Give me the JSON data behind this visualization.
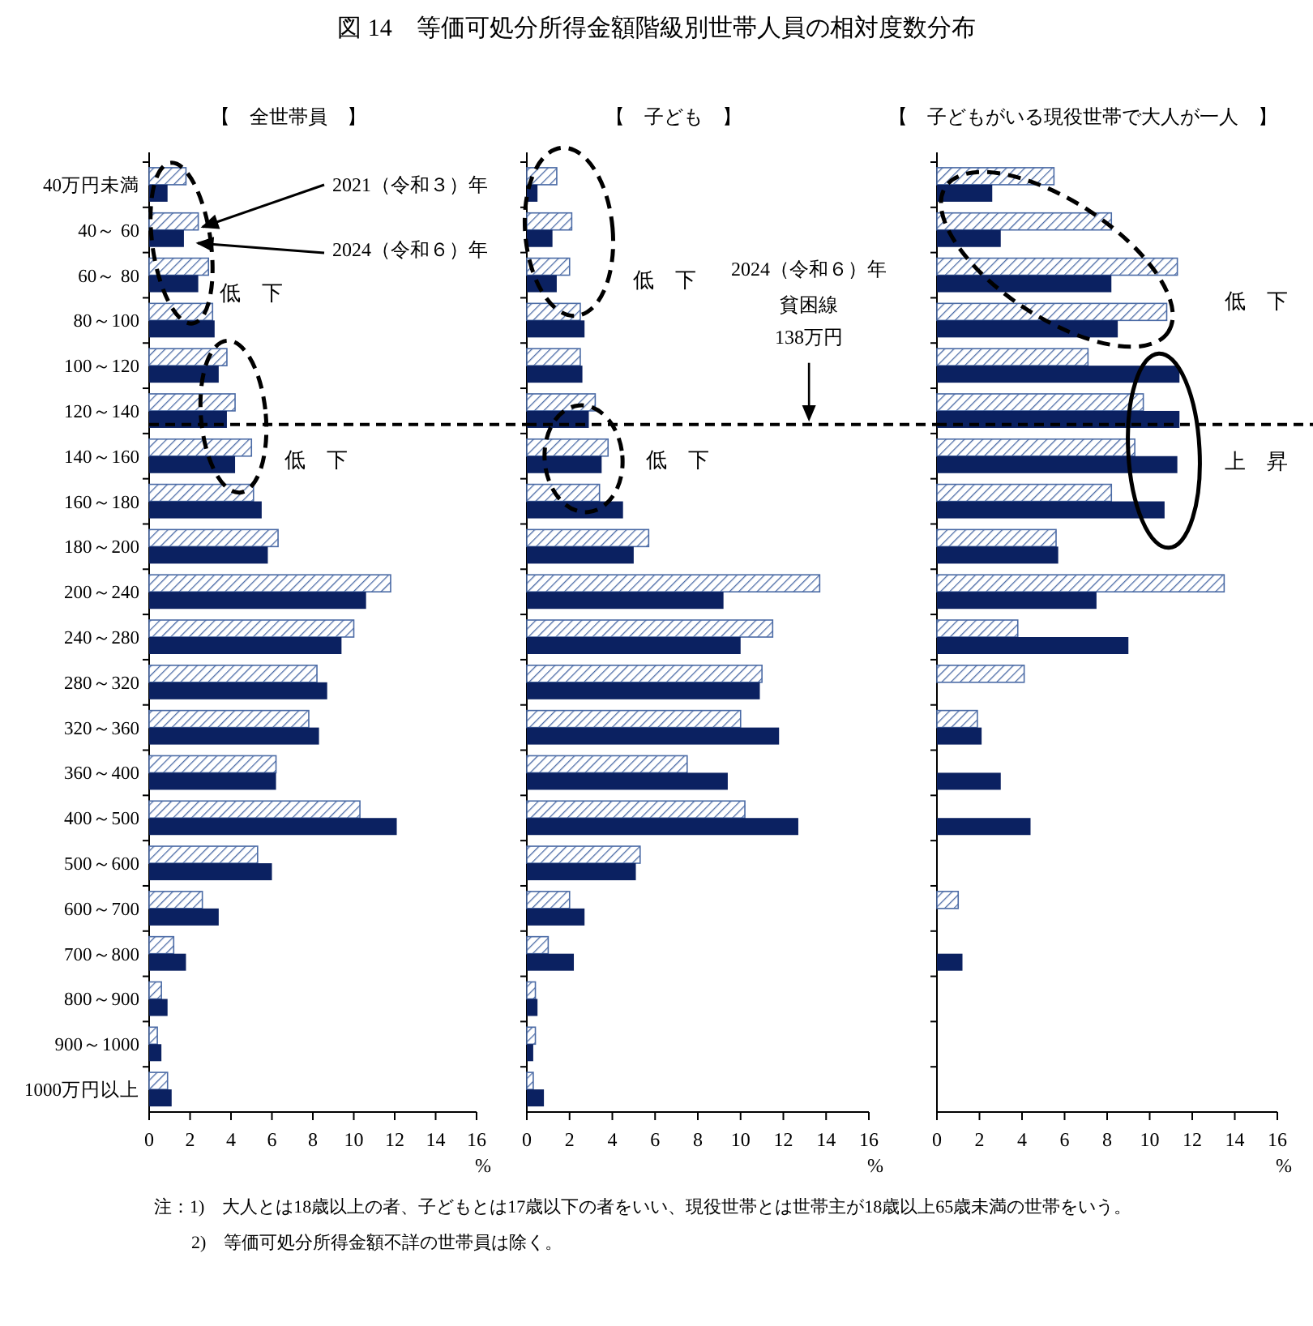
{
  "chart_data": [
    {
      "type": "bar",
      "orientation": "horizontal",
      "title": "図 14　等価可処分所得金額階級別世帯人員の相対度数分布",
      "subtitle": "【　全世帯員　】",
      "xlabel": "%",
      "categories": [
        "40万円未満",
        "40～ 60",
        "60～ 80",
        "80～100",
        "100～120",
        "120～140",
        "140～160",
        "160～180",
        "180～200",
        "200～240",
        "240～280",
        "280～320",
        "320～360",
        "360～400",
        "400～500",
        "500～600",
        "600～700",
        "700～800",
        "800～900",
        "900～1000",
        "1000万円以上"
      ],
      "series": [
        {
          "name": "2021（令和３）年",
          "color": "#4a6aa5",
          "values": [
            1.8,
            2.4,
            2.9,
            3.1,
            3.8,
            4.2,
            5.0,
            5.1,
            6.3,
            11.8,
            10.0,
            8.2,
            7.8,
            6.2,
            10.3,
            5.3,
            2.6,
            1.2,
            0.6,
            0.4,
            0.9
          ]
        },
        {
          "name": "2024（令和６）年",
          "color": "#0b2161",
          "values": [
            0.9,
            1.7,
            2.4,
            3.2,
            3.4,
            3.8,
            4.2,
            5.5,
            5.8,
            10.6,
            9.4,
            8.7,
            8.3,
            6.2,
            12.1,
            6.0,
            3.4,
            1.8,
            0.9,
            0.6,
            1.1
          ]
        }
      ],
      "xlim": [
        0,
        16
      ],
      "xticks": [
        0,
        2,
        4,
        6,
        8,
        10,
        12,
        14,
        16
      ],
      "ref_lines": [
        {
          "axis": "y",
          "value": "120～140"
        }
      ],
      "annotations": [
        "低　下",
        "低　下",
        "注：1)　大人とは18歳以上の者、子どもとは17歳以下の者をいい、現役世帯とは世帯主が18歳以上65歳未満の世帯をいう。",
        "2)　等価可処分所得金額不詳の世帯員は除く。"
      ]
    },
    {
      "type": "bar",
      "orientation": "horizontal",
      "subtitle": "【　子ども　】",
      "xlabel": "%",
      "tick_labels": "x",
      "categories": [
        "40万円未満",
        "40～ 60",
        "60～ 80",
        "80～100",
        "100～120",
        "120～140",
        "140～160",
        "160～180",
        "180～200",
        "200～240",
        "240～280",
        "280～320",
        "320～360",
        "360～400",
        "400～500",
        "500～600",
        "600～700",
        "700～800",
        "800～900",
        "900～1000",
        "1000万円以上"
      ],
      "series": [
        {
          "color": "#4a6aa5",
          "values": [
            1.4,
            2.1,
            2.0,
            2.5,
            2.5,
            3.2,
            3.8,
            3.4,
            5.7,
            13.7,
            11.5,
            11.0,
            10.0,
            7.5,
            10.2,
            5.3,
            2.0,
            1.0,
            0.4,
            0.4,
            0.3
          ]
        },
        {
          "color": "#0b2161",
          "values": [
            0.5,
            1.2,
            1.4,
            2.7,
            2.6,
            2.9,
            3.5,
            4.5,
            5.0,
            9.2,
            10.0,
            10.9,
            11.8,
            9.4,
            12.7,
            5.1,
            2.7,
            2.2,
            0.5,
            0.3,
            0.8
          ]
        }
      ],
      "xlim": [
        0,
        16
      ],
      "xticks": [
        0,
        2,
        4,
        6,
        8,
        10,
        12,
        14,
        16
      ],
      "ref_lines": [
        {
          "axis": "y",
          "value": "120～140",
          "label": "貧困線"
        }
      ],
      "annotations": [
        "低　下",
        "低　下",
        "2024（令和６）年",
        "138万円"
      ]
    },
    {
      "type": "bar",
      "orientation": "horizontal",
      "subtitle": "【　子どもがいる現役世帯で大人が一人　】",
      "xlabel": "%",
      "tick_labels": "x",
      "categories": [
        "40万円未満",
        "40～ 60",
        "60～ 80",
        "80～100",
        "100～120",
        "120～140",
        "140～160",
        "160～180",
        "180～200",
        "200～240",
        "240～280",
        "280～320",
        "320～360",
        "360～400",
        "400～500",
        "500～600",
        "600～700",
        "700～800",
        "800～900",
        "900～1000",
        "1000万円以上"
      ],
      "series": [
        {
          "color": "#4a6aa5",
          "values": [
            5.5,
            8.2,
            11.3,
            10.8,
            7.1,
            9.7,
            9.3,
            8.2,
            5.6,
            13.5,
            3.8,
            4.1,
            1.9,
            null,
            null,
            null,
            1.0,
            null,
            null,
            null,
            null
          ]
        },
        {
          "color": "#0b2161",
          "values": [
            2.6,
            3.0,
            8.2,
            8.5,
            11.4,
            11.4,
            11.3,
            10.7,
            5.7,
            7.5,
            9.0,
            null,
            2.1,
            3.0,
            4.4,
            null,
            null,
            1.2,
            null,
            null,
            null
          ]
        }
      ],
      "xlim": [
        0,
        16
      ],
      "xticks": [
        0,
        2,
        4,
        6,
        8,
        10,
        12,
        14,
        16
      ],
      "ref_lines": [
        {
          "axis": "y",
          "value": "120～140"
        }
      ],
      "annotations": [
        "低　下",
        "上　昇"
      ]
    }
  ]
}
